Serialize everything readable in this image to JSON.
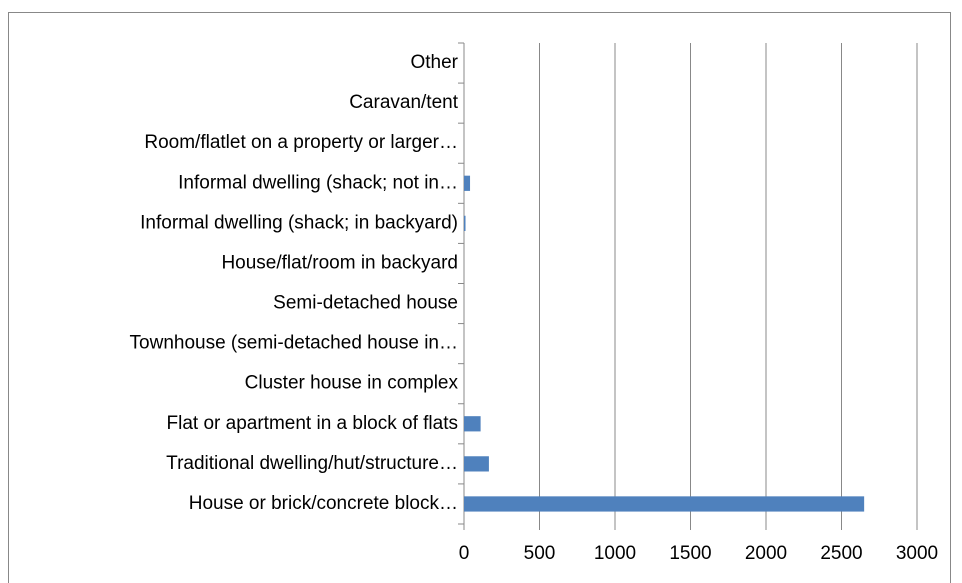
{
  "chart_data": {
    "type": "bar",
    "orientation": "horizontal",
    "categories": [
      "House or brick/concrete block…",
      "Traditional dwelling/hut/structure…",
      "Flat or apartment in a block of flats",
      "Cluster house in complex",
      "Townhouse (semi-detached house in…",
      "Semi-detached house",
      "House/flat/room in backyard",
      "Informal dwelling (shack; in backyard)",
      "Informal dwelling (shack; not in…",
      "Room/flatlet on a property or larger…",
      "Caravan/tent",
      "Other"
    ],
    "values": [
      2650,
      165,
      110,
      0,
      0,
      0,
      0,
      10,
      40,
      0,
      0,
      0
    ],
    "color": "#4f81bd",
    "xlim": [
      0,
      3000
    ],
    "xticks": [
      0,
      500,
      1000,
      1500,
      2000,
      2500,
      3000
    ],
    "grid": true
  }
}
